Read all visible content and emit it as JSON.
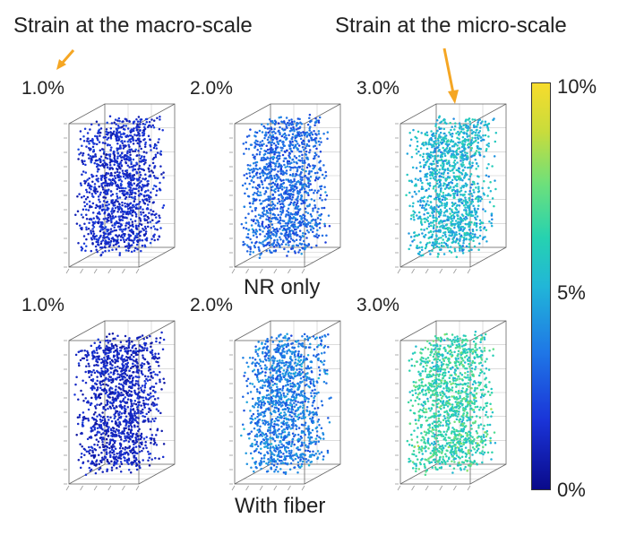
{
  "headers": {
    "macro": "Strain at the macro-scale",
    "micro": "Strain at the micro-scale"
  },
  "groups": {
    "top": "NR only",
    "bottom": "With fiber"
  },
  "rows": [
    {
      "group": "top",
      "panels": [
        {
          "label": "1.0%",
          "level": 0.12
        },
        {
          "label": "2.0%",
          "level": 0.25
        },
        {
          "label": "3.0%",
          "level": 0.45
        }
      ]
    },
    {
      "group": "bottom",
      "panels": [
        {
          "label": "1.0%",
          "level": 0.1
        },
        {
          "label": "2.0%",
          "level": 0.3
        },
        {
          "label": "3.0%",
          "level": 0.58
        }
      ]
    }
  ],
  "colorbar": {
    "max_label": "10%",
    "mid_label": "5%",
    "min_label": "0%",
    "colors": [
      "#0a0a8a",
      "#1a34d8",
      "#1f78e6",
      "#21b6d8",
      "#26d2b0",
      "#6ce07c",
      "#c8dc3c",
      "#f7dc2c"
    ]
  },
  "arrow_color": "#f5a623"
}
